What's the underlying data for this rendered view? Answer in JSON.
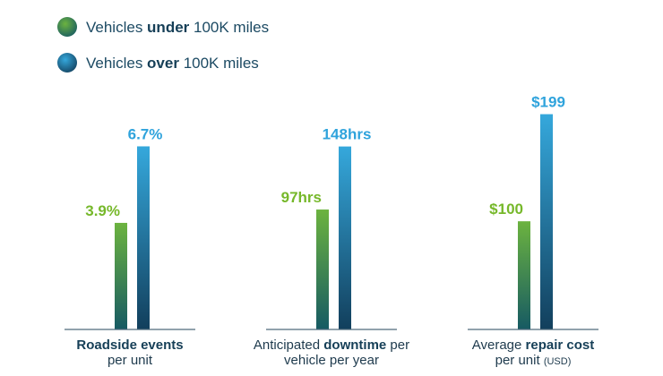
{
  "chart_data": {
    "type": "bar",
    "title": "",
    "xlabel": "",
    "ylabel": "",
    "grid": false,
    "legend_position": "top-left",
    "series": [
      {
        "name": "Vehicles under 100K miles",
        "name_parts": [
          {
            "text": "Vehicles ",
            "bold": false
          },
          {
            "text": "under",
            "bold": true
          },
          {
            "text": " 100K miles",
            "bold": false
          }
        ],
        "values": [
          3.9,
          97,
          100
        ],
        "value_labels": [
          "3.9%",
          "97hrs",
          "$100"
        ],
        "color_top": "#6cb33f",
        "color_bottom": "#165a63",
        "label_color": "#76b82a"
      },
      {
        "name": "Vehicles over 100K miles",
        "name_parts": [
          {
            "text": "Vehicles ",
            "bold": false
          },
          {
            "text": "over",
            "bold": true
          },
          {
            "text": " 100K miles",
            "bold": false
          }
        ],
        "values": [
          6.7,
          148,
          199
        ],
        "value_labels": [
          "6.7%",
          "148hrs",
          "$199"
        ],
        "color_top": "#35a8dc",
        "color_bottom": "#123f5c",
        "label_color": "#2fa3dc"
      }
    ],
    "categories": [
      {
        "lines": [
          [
            {
              "text": "Roadside events",
              "bold": true,
              "small": false
            }
          ],
          [
            {
              "text": "per unit",
              "bold": false,
              "small": false
            }
          ]
        ],
        "max": 9.5
      },
      {
        "lines": [
          [
            {
              "text": "Anticipated ",
              "bold": false,
              "small": false
            },
            {
              "text": "downtime",
              "bold": true,
              "small": false
            },
            {
              "text": " per",
              "bold": false,
              "small": false
            }
          ],
          [
            {
              "text": "vehicle per year",
              "bold": false,
              "small": false
            }
          ]
        ],
        "max": 210
      },
      {
        "lines": [
          [
            {
              "text": "Average ",
              "bold": false,
              "small": false
            },
            {
              "text": "repair cost",
              "bold": true,
              "small": false
            }
          ],
          [
            {
              "text": "per unit ",
              "bold": false,
              "small": false
            },
            {
              "text": "(USD)",
              "bold": false,
              "small": true
            }
          ]
        ],
        "max": 240
      }
    ]
  }
}
